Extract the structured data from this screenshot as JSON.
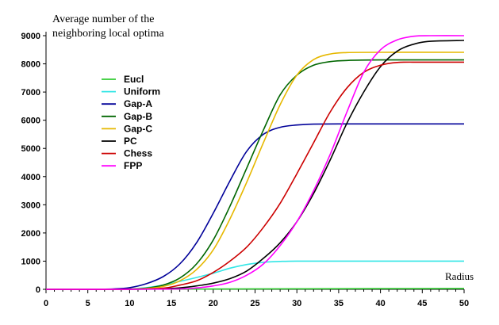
{
  "chart_data": {
    "type": "line",
    "ylabel": "Average number of the\nneighboring local optima",
    "xlabel": "Radius",
    "xlim": [
      0,
      50
    ],
    "ylim": [
      0,
      9000
    ],
    "xticks": [
      0,
      5,
      10,
      15,
      20,
      25,
      30,
      35,
      40,
      45,
      50
    ],
    "yticks": [
      0,
      1000,
      2000,
      3000,
      4000,
      5000,
      6000,
      7000,
      8000,
      9000
    ],
    "grid": false,
    "legend_position": "upper-left",
    "series": [
      {
        "name": "Eucl",
        "color": "#33cc33",
        "points": [
          [
            0,
            0
          ],
          [
            10,
            2
          ],
          [
            20,
            10
          ],
          [
            30,
            20
          ],
          [
            40,
            25
          ],
          [
            50,
            30
          ]
        ]
      },
      {
        "name": "Uniform",
        "color": "#33e6e6",
        "points": [
          [
            0,
            0
          ],
          [
            8,
            5
          ],
          [
            10,
            15
          ],
          [
            12,
            60
          ],
          [
            14,
            150
          ],
          [
            16,
            280
          ],
          [
            18,
            420
          ],
          [
            20,
            570
          ],
          [
            22,
            750
          ],
          [
            24,
            880
          ],
          [
            26,
            960
          ],
          [
            28,
            990
          ],
          [
            30,
            1000
          ],
          [
            35,
            1000
          ],
          [
            40,
            1000
          ],
          [
            50,
            1000
          ]
        ]
      },
      {
        "name": "Gap-A",
        "color": "#000099",
        "points": [
          [
            0,
            0
          ],
          [
            5,
            2
          ],
          [
            8,
            15
          ],
          [
            10,
            60
          ],
          [
            12,
            200
          ],
          [
            14,
            450
          ],
          [
            16,
            900
          ],
          [
            18,
            1650
          ],
          [
            20,
            2700
          ],
          [
            22,
            3850
          ],
          [
            24,
            4900
          ],
          [
            26,
            5500
          ],
          [
            28,
            5750
          ],
          [
            30,
            5830
          ],
          [
            32,
            5860
          ],
          [
            35,
            5870
          ],
          [
            40,
            5870
          ],
          [
            50,
            5870
          ]
        ]
      },
      {
        "name": "Gap-B",
        "color": "#006600",
        "points": [
          [
            0,
            0
          ],
          [
            8,
            2
          ],
          [
            10,
            10
          ],
          [
            12,
            40
          ],
          [
            14,
            150
          ],
          [
            16,
            400
          ],
          [
            18,
            900
          ],
          [
            20,
            1750
          ],
          [
            22,
            2950
          ],
          [
            24,
            4300
          ],
          [
            26,
            5650
          ],
          [
            28,
            6900
          ],
          [
            30,
            7600
          ],
          [
            32,
            7950
          ],
          [
            34,
            8080
          ],
          [
            36,
            8120
          ],
          [
            40,
            8140
          ],
          [
            50,
            8140
          ]
        ]
      },
      {
        "name": "Gap-C",
        "color": "#e6b800",
        "points": [
          [
            0,
            0
          ],
          [
            8,
            2
          ],
          [
            10,
            8
          ],
          [
            12,
            30
          ],
          [
            14,
            100
          ],
          [
            16,
            300
          ],
          [
            18,
            700
          ],
          [
            20,
            1400
          ],
          [
            22,
            2500
          ],
          [
            24,
            3800
          ],
          [
            26,
            5200
          ],
          [
            28,
            6550
          ],
          [
            30,
            7600
          ],
          [
            32,
            8150
          ],
          [
            34,
            8350
          ],
          [
            36,
            8400
          ],
          [
            40,
            8410
          ],
          [
            50,
            8410
          ]
        ]
      },
      {
        "name": "PC",
        "color": "#000000",
        "points": [
          [
            0,
            0
          ],
          [
            10,
            2
          ],
          [
            14,
            20
          ],
          [
            16,
            50
          ],
          [
            18,
            120
          ],
          [
            20,
            220
          ],
          [
            22,
            380
          ],
          [
            24,
            650
          ],
          [
            26,
            1100
          ],
          [
            28,
            1650
          ],
          [
            30,
            2400
          ],
          [
            32,
            3400
          ],
          [
            34,
            4600
          ],
          [
            36,
            5900
          ],
          [
            38,
            7000
          ],
          [
            40,
            7900
          ],
          [
            42,
            8450
          ],
          [
            44,
            8700
          ],
          [
            46,
            8800
          ],
          [
            50,
            8830
          ]
        ]
      },
      {
        "name": "Chess",
        "color": "#cc0000",
        "points": [
          [
            0,
            0
          ],
          [
            10,
            2
          ],
          [
            14,
            40
          ],
          [
            16,
            150
          ],
          [
            18,
            300
          ],
          [
            20,
            600
          ],
          [
            22,
            1000
          ],
          [
            24,
            1500
          ],
          [
            26,
            2200
          ],
          [
            28,
            3050
          ],
          [
            30,
            4100
          ],
          [
            32,
            5200
          ],
          [
            34,
            6300
          ],
          [
            36,
            7150
          ],
          [
            38,
            7700
          ],
          [
            40,
            7950
          ],
          [
            42,
            8050
          ],
          [
            45,
            8060
          ],
          [
            50,
            8060
          ]
        ]
      },
      {
        "name": "FPP",
        "color": "#ff00ff",
        "points": [
          [
            0,
            0
          ],
          [
            10,
            2
          ],
          [
            16,
            15
          ],
          [
            18,
            50
          ],
          [
            20,
            120
          ],
          [
            22,
            250
          ],
          [
            24,
            500
          ],
          [
            26,
            900
          ],
          [
            28,
            1550
          ],
          [
            30,
            2400
          ],
          [
            32,
            3500
          ],
          [
            34,
            4800
          ],
          [
            36,
            6300
          ],
          [
            38,
            7700
          ],
          [
            40,
            8500
          ],
          [
            42,
            8850
          ],
          [
            44,
            8980
          ],
          [
            46,
            9000
          ],
          [
            50,
            9000
          ]
        ]
      }
    ]
  }
}
